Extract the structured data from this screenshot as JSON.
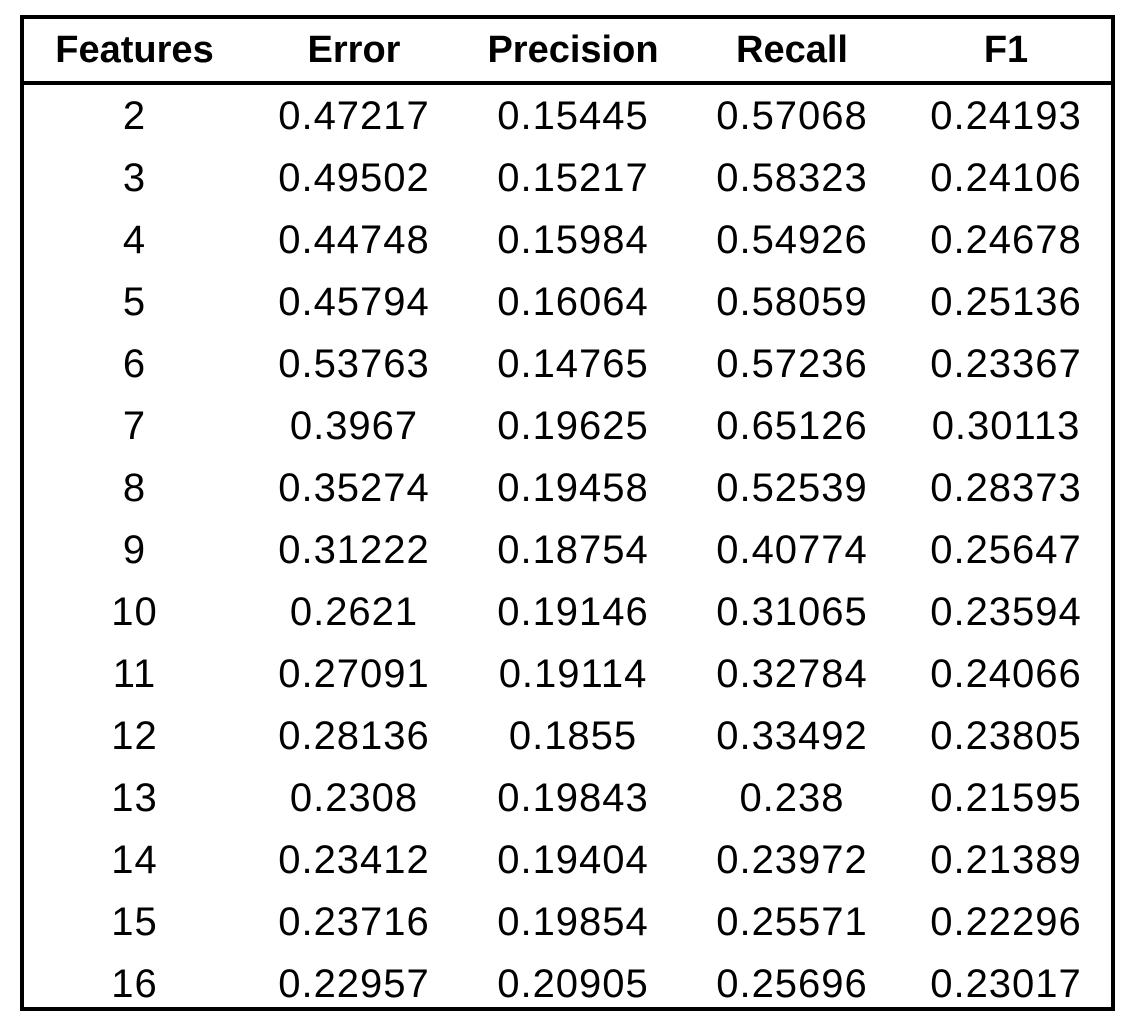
{
  "chart_data": {
    "type": "table",
    "columns": [
      "Features",
      "Error",
      "Precision",
      "Recall",
      "F1"
    ],
    "rows": [
      [
        "2",
        "0.47217",
        "0.15445",
        "0.57068",
        "0.24193"
      ],
      [
        "3",
        "0.49502",
        "0.15217",
        "0.58323",
        "0.24106"
      ],
      [
        "4",
        "0.44748",
        "0.15984",
        "0.54926",
        "0.24678"
      ],
      [
        "5",
        "0.45794",
        "0.16064",
        "0.58059",
        "0.25136"
      ],
      [
        "6",
        "0.53763",
        "0.14765",
        "0.57236",
        "0.23367"
      ],
      [
        "7",
        "0.3967",
        "0.19625",
        "0.65126",
        "0.30113"
      ],
      [
        "8",
        "0.35274",
        "0.19458",
        "0.52539",
        "0.28373"
      ],
      [
        "9",
        "0.31222",
        "0.18754",
        "0.40774",
        "0.25647"
      ],
      [
        "10",
        "0.2621",
        "0.19146",
        "0.31065",
        "0.23594"
      ],
      [
        "11",
        "0.27091",
        "0.19114",
        "0.32784",
        "0.24066"
      ],
      [
        "12",
        "0.28136",
        "0.1855",
        "0.33492",
        "0.23805"
      ],
      [
        "13",
        "0.2308",
        "0.19843",
        "0.238",
        "0.21595"
      ],
      [
        "14",
        "0.23412",
        "0.19404",
        "0.23972",
        "0.21389"
      ],
      [
        "15",
        "0.23716",
        "0.19854",
        "0.25571",
        "0.22296"
      ],
      [
        "16",
        "0.22957",
        "0.20905",
        "0.25696",
        "0.23017"
      ]
    ]
  }
}
